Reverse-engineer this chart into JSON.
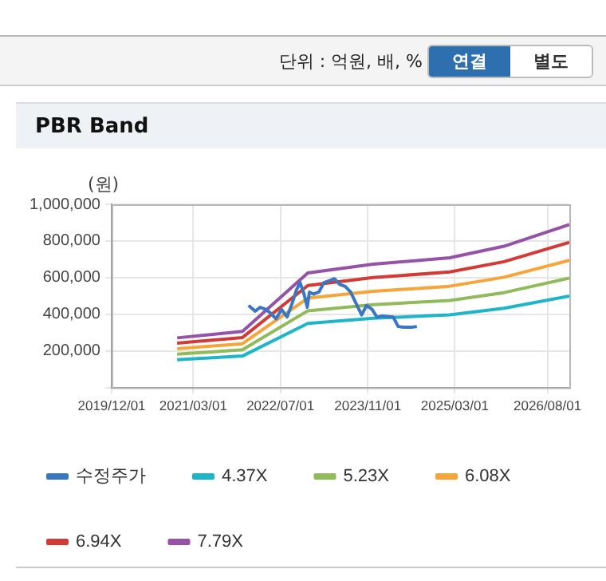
{
  "chart_data": {
    "type": "line",
    "title": "PBR Band",
    "ylabel": "(원)",
    "annotations": [
      "단위 : 억원, 배, %",
      "연결",
      "별도"
    ],
    "xlim": [
      "2019-12-01",
      "2026-12-01"
    ],
    "xticks": [
      {
        "value": "2019-12-01",
        "label": "2019/12/01"
      },
      {
        "value": "2021-03-01",
        "label": "2021/03/01"
      },
      {
        "value": "2022-07-01",
        "label": "2022/07/01"
      },
      {
        "value": "2023-11-01",
        "label": "2023/11/01"
      },
      {
        "value": "2025-03-01",
        "label": "2025/03/01"
      },
      {
        "value": "2026-08-01",
        "label": "2026/08/01"
      }
    ],
    "ylim": [
      0,
      1000000
    ],
    "yticks": [
      {
        "value": 0,
        "label": null
      },
      {
        "value": 200000,
        "label": "200,000"
      },
      {
        "value": 400000,
        "label": "400,000"
      },
      {
        "value": 600000,
        "label": "600,000"
      },
      {
        "value": 800000,
        "label": "800,000"
      },
      {
        "value": 1000000,
        "label": "1,000,000"
      }
    ],
    "grid": true,
    "legend": "bottom",
    "marker": "none",
    "line_style": "solid",
    "series": [
      {
        "name": "수정주가",
        "color": "#3a77c2",
        "x": [
          "2022-01-04",
          "2022-02-10",
          "2022-03-10",
          "2022-04-10",
          "2022-05-07",
          "2022-06-07",
          "2022-07-07",
          "2022-08-07",
          "2022-09-04",
          "2022-09-28",
          "2022-10-19",
          "2022-11-10",
          "2022-11-28",
          "2022-12-10",
          "2023-01-01",
          "2023-02-01",
          "2023-03-01",
          "2023-04-01",
          "2023-04-28",
          "2023-05-28",
          "2023-06-28",
          "2023-07-28",
          "2023-08-28",
          "2023-09-28",
          "2023-10-25",
          "2023-11-25",
          "2023-12-22",
          "2024-01-22",
          "2024-03-22",
          "2024-04-19",
          "2024-05-19",
          "2024-07-04",
          "2024-08-01"
        ],
        "values": [
          448000,
          417000,
          438000,
          427000,
          406000,
          375000,
          427000,
          385000,
          458000,
          531000,
          573000,
          510000,
          438000,
          521000,
          510000,
          521000,
          573000,
          583000,
          594000,
          563000,
          552000,
          521000,
          458000,
          396000,
          448000,
          427000,
          385000,
          390000,
          385000,
          333000,
          329000,
          329000,
          333000
        ]
      },
      {
        "name": "4.37X",
        "color": "#1fb5c8",
        "x": [
          "2020-12-01",
          "2021-12-01",
          "2022-12-01",
          "2023-12-01",
          "2025-02-01",
          "2025-12-01",
          "2026-12-01"
        ],
        "values": [
          152000,
          172000,
          350000,
          378000,
          397000,
          433000,
          499000
        ]
      },
      {
        "name": "5.23X",
        "color": "#8fbb5a",
        "x": [
          "2020-12-01",
          "2021-12-01",
          "2022-12-01",
          "2023-12-01",
          "2025-02-01",
          "2025-12-01",
          "2026-12-01"
        ],
        "values": [
          182000,
          206000,
          419000,
          452000,
          475000,
          518000,
          597000
        ]
      },
      {
        "name": "6.08X",
        "color": "#f5a53a",
        "x": [
          "2020-12-01",
          "2021-12-01",
          "2022-12-01",
          "2023-12-01",
          "2025-02-01",
          "2025-12-01",
          "2026-12-01"
        ],
        "values": [
          212000,
          239000,
          488000,
          525000,
          553000,
          602000,
          694000
        ]
      },
      {
        "name": "6.94X",
        "color": "#d23a36",
        "x": [
          "2020-12-01",
          "2021-12-01",
          "2022-12-01",
          "2023-12-01",
          "2025-02-01",
          "2025-12-01",
          "2026-12-01"
        ],
        "values": [
          242000,
          273000,
          557000,
          600000,
          631000,
          687000,
          792000
        ]
      },
      {
        "name": "7.79X",
        "color": "#9553a8",
        "x": [
          "2020-12-01",
          "2021-12-01",
          "2022-12-01",
          "2023-12-01",
          "2025-02-01",
          "2025-12-01",
          "2026-12-01"
        ],
        "values": [
          271000,
          306000,
          625000,
          673000,
          708000,
          771000,
          889000
        ]
      }
    ]
  }
}
